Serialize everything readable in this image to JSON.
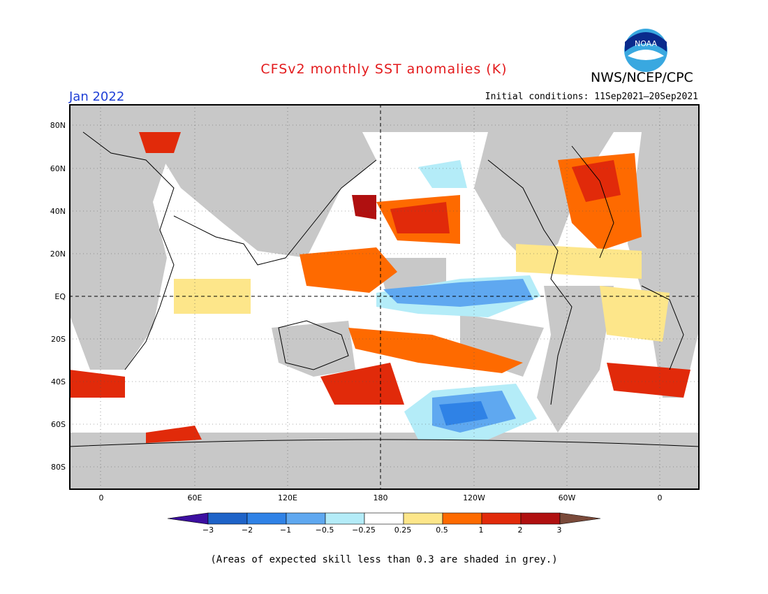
{
  "header": {
    "title": "CFSv2 monthly SST anomalies (K)",
    "org": "NWS/NCEP/CPC",
    "logo_text": "NOAA",
    "month": "Jan 2022",
    "initial_conditions": "Initial conditions: 11Sep2021–20Sep2021"
  },
  "map": {
    "lat_labels": [
      "80N",
      "60N",
      "40N",
      "20N",
      "EQ",
      "20S",
      "40S",
      "60S",
      "80S"
    ],
    "lon_labels": [
      "0",
      "60E",
      "120E",
      "180",
      "120W",
      "60W",
      "0"
    ],
    "land_color": "#c8c8c8",
    "ocean_background": "#ffffff"
  },
  "colorbar": {
    "labels": [
      "−3",
      "−2",
      "−1",
      "−0.5",
      "−0.25",
      "0.25",
      "0.5",
      "1",
      "2",
      "3"
    ],
    "colors": [
      "#3c0fa0",
      "#1e63c8",
      "#2f82e6",
      "#5fa8f0",
      "#b4ecf8",
      "#ffffff",
      "#fde68a",
      "#fe6a00",
      "#e12a0a",
      "#b01010",
      "#7a4a3a"
    ]
  },
  "footer": {
    "note": "(Areas of expected skill less than 0.3 are shaded in grey.)"
  }
}
